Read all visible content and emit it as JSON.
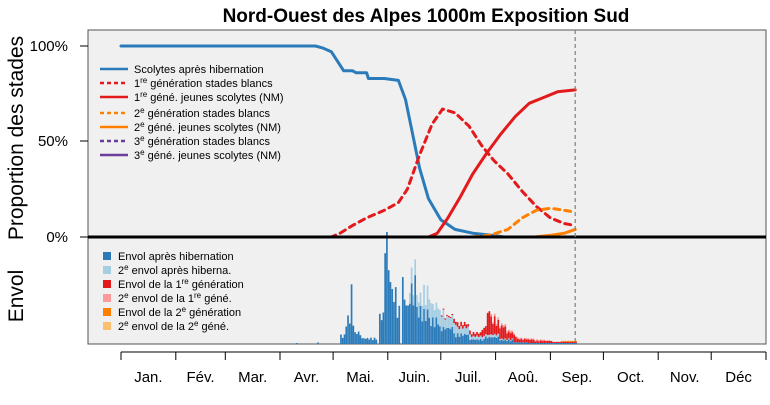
{
  "chart_data": {
    "type": "line",
    "title": "Nord-Ouest des Alpes 1000m Exposition Sud",
    "ylabel_top": "Proportion des stades",
    "ylabel_bottom": "Envol",
    "yticks": [
      "100%",
      "50%",
      "0%"
    ],
    "ylim": [
      0,
      1.05
    ],
    "x_unit": "day of year",
    "xlim": [
      1,
      365
    ],
    "months": [
      "Jan.",
      "Fév.",
      "Mar.",
      "Avr.",
      "Mai.",
      "Juin.",
      "Juil.",
      "Aoû.",
      "Sep.",
      "Oct.",
      "Nov.",
      "Déc"
    ],
    "current_day": 258,
    "grid": false,
    "legend_top_position": "top-left",
    "legend_bottom_position": "bottom-left",
    "series": [
      {
        "name": "Scolytes après hibernation",
        "color": "#2b7bba",
        "dash": "solid",
        "x": [
          1,
          100,
          111,
          115,
          120,
          127,
          132,
          134,
          140,
          141,
          150,
          158,
          162,
          166,
          170,
          175,
          182,
          190,
          200,
          210,
          218,
          258
        ],
        "y": [
          1.0,
          1.0,
          1.0,
          0.99,
          0.97,
          0.87,
          0.87,
          0.86,
          0.86,
          0.83,
          0.83,
          0.82,
          0.72,
          0.54,
          0.36,
          0.2,
          0.09,
          0.04,
          0.02,
          0.01,
          0.0,
          0.0
        ]
      },
      {
        "name": "1re génération stades blancs",
        "color": "#e31a1c",
        "dash": "dash",
        "x": [
          1,
          120,
          125,
          132,
          140,
          150,
          158,
          163,
          170,
          177,
          183,
          190,
          198,
          205,
          212,
          220,
          228,
          236,
          244,
          252,
          258
        ],
        "y": [
          0,
          0,
          0.02,
          0.06,
          0.1,
          0.14,
          0.18,
          0.25,
          0.43,
          0.59,
          0.67,
          0.65,
          0.58,
          0.48,
          0.4,
          0.33,
          0.24,
          0.16,
          0.1,
          0.07,
          0.06
        ]
      },
      {
        "name": "1re géné. jeunes scolytes (NM)",
        "color": "#e31a1c",
        "dash": "solid",
        "x": [
          1,
          175,
          180,
          186,
          193,
          200,
          208,
          216,
          224,
          232,
          240,
          248,
          258
        ],
        "y": [
          0,
          0,
          0.02,
          0.1,
          0.21,
          0.33,
          0.44,
          0.54,
          0.63,
          0.7,
          0.73,
          0.76,
          0.77
        ]
      },
      {
        "name": "2e génération stades blancs",
        "color": "#ff7f00",
        "dash": "dash",
        "x": [
          1,
          200,
          210,
          220,
          228,
          236,
          244,
          252,
          258
        ],
        "y": [
          0,
          0,
          0.01,
          0.04,
          0.1,
          0.14,
          0.15,
          0.14,
          0.13
        ]
      },
      {
        "name": "2e géné. jeunes scolytes (NM)",
        "color": "#ff7f00",
        "dash": "solid",
        "x": [
          1,
          235,
          245,
          252,
          258
        ],
        "y": [
          0,
          0,
          0.01,
          0.02,
          0.04
        ]
      },
      {
        "name": "3e génération stades blancs",
        "color": "#6a3d9a",
        "dash": "dash",
        "x": [
          1,
          258
        ],
        "y": [
          0,
          0
        ]
      },
      {
        "name": "3e géné. jeunes scolytes (NM)",
        "color": "#6a3d9a",
        "dash": "solid",
        "x": [
          1,
          258
        ],
        "y": [
          0,
          0
        ]
      }
    ],
    "flight_series": [
      {
        "name": "Envol après hibernation",
        "color": "#2b7bba",
        "segments": [
          {
            "from": 100,
            "to": 100,
            "value": 0.02
          },
          {
            "from": 112,
            "to": 112,
            "value": 0.03
          },
          {
            "from": 125,
            "to": 127,
            "value": 0.15
          },
          {
            "from": 128,
            "to": 130,
            "value": 0.45
          },
          {
            "from": 131,
            "to": 131,
            "value": 1.17
          },
          {
            "from": 132,
            "to": 132,
            "value": 0.36
          },
          {
            "from": 133,
            "to": 136,
            "value": 0.2
          },
          {
            "from": 137,
            "to": 145,
            "value": 0.1
          },
          {
            "from": 147,
            "to": 149,
            "value": 0.5
          },
          {
            "from": 150,
            "to": 151,
            "value": 2.02
          },
          {
            "from": 152,
            "to": 153,
            "value": 1.2
          },
          {
            "from": 154,
            "to": 156,
            "value": 0.9
          },
          {
            "from": 157,
            "to": 158,
            "value": 0.6
          },
          {
            "from": 160,
            "to": 161,
            "value": 1.05
          },
          {
            "from": 162,
            "to": 163,
            "value": 0.7
          },
          {
            "from": 164,
            "to": 166,
            "value": 0.95
          },
          {
            "from": 167,
            "to": 167,
            "value": 1.35
          },
          {
            "from": 168,
            "to": 170,
            "value": 0.6
          },
          {
            "from": 171,
            "to": 174,
            "value": 0.55
          },
          {
            "from": 175,
            "to": 180,
            "value": 0.42
          },
          {
            "from": 181,
            "to": 188,
            "value": 0.28
          },
          {
            "from": 189,
            "to": 197,
            "value": 0.17
          },
          {
            "from": 198,
            "to": 205,
            "value": 0.08
          },
          {
            "from": 206,
            "to": 214,
            "value": 0.12
          },
          {
            "from": 215,
            "to": 222,
            "value": 0.07
          },
          {
            "from": 223,
            "to": 230,
            "value": 0.03
          },
          {
            "from": 231,
            "to": 258,
            "value": 0.01
          }
        ]
      },
      {
        "name": "2e envol après hiberna.",
        "color": "#a6cee3",
        "segments": [
          {
            "from": 164,
            "to": 170,
            "value": 0.25
          },
          {
            "from": 171,
            "to": 176,
            "value": 0.38
          },
          {
            "from": 177,
            "to": 183,
            "value": 0.28
          },
          {
            "from": 184,
            "to": 190,
            "value": 0.2
          },
          {
            "from": 191,
            "to": 198,
            "value": 0.13
          },
          {
            "from": 199,
            "to": 206,
            "value": 0.06
          },
          {
            "from": 207,
            "to": 214,
            "value": 0.05
          },
          {
            "from": 215,
            "to": 222,
            "value": 0.02
          }
        ]
      },
      {
        "name": "Envol de la 1re génération",
        "color": "#e31a1c",
        "segments": [
          {
            "from": 182,
            "to": 188,
            "value": 0.02
          },
          {
            "from": 189,
            "to": 195,
            "value": 0.07
          },
          {
            "from": 196,
            "to": 204,
            "value": 0.06
          },
          {
            "from": 205,
            "to": 207,
            "value": 0.14
          },
          {
            "from": 208,
            "to": 209,
            "value": 0.4
          },
          {
            "from": 210,
            "to": 212,
            "value": 0.28
          },
          {
            "from": 213,
            "to": 218,
            "value": 0.22
          },
          {
            "from": 219,
            "to": 224,
            "value": 0.12
          },
          {
            "from": 225,
            "to": 234,
            "value": 0.06
          },
          {
            "from": 235,
            "to": 244,
            "value": 0.04
          },
          {
            "from": 245,
            "to": 258,
            "value": 0.02
          }
        ]
      },
      {
        "name": "2e envol de la 1re géné.",
        "color": "#fb9a99",
        "segments": [
          {
            "from": 210,
            "to": 222,
            "value": 0.04
          },
          {
            "from": 223,
            "to": 240,
            "value": 0.02
          }
        ]
      },
      {
        "name": "Envol de la 2e génération",
        "color": "#ff7f00",
        "segments": [
          {
            "from": 250,
            "to": 258,
            "value": 0.01
          }
        ]
      },
      {
        "name": "2e envol de la 2e géné.",
        "color": "#fdbf6f",
        "segments": []
      }
    ]
  }
}
